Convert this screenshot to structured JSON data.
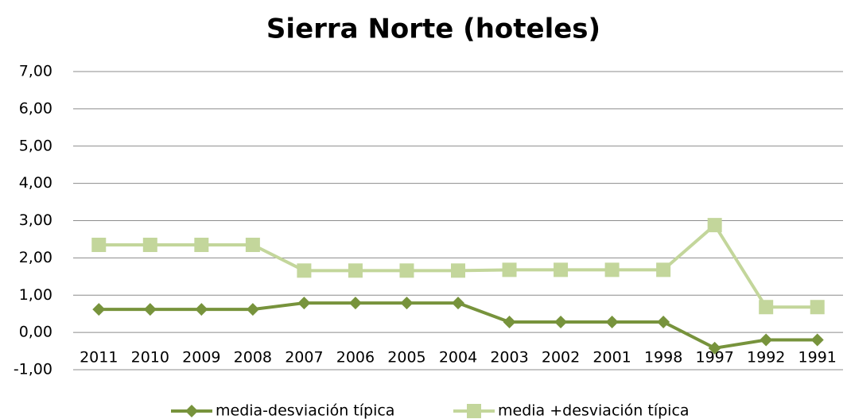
{
  "chart_data": {
    "type": "line",
    "title": "Sierra Norte (hoteles)",
    "categories": [
      "2011",
      "2010",
      "2009",
      "2008",
      "2007",
      "2006",
      "2005",
      "2004",
      "2003",
      "2002",
      "2001",
      "1998",
      "1997",
      "1992",
      "1991"
    ],
    "series": [
      {
        "name": "media-desviación típica",
        "color": "#77933c",
        "marker": "diamond",
        "values": [
          0.62,
          0.62,
          0.62,
          0.62,
          0.79,
          0.79,
          0.79,
          0.79,
          0.28,
          0.28,
          0.28,
          0.28,
          -0.42,
          -0.2,
          -0.2
        ]
      },
      {
        "name": "media +desviación típica",
        "color": "#c3d69b",
        "marker": "square",
        "values": [
          2.35,
          2.35,
          2.35,
          2.35,
          1.66,
          1.66,
          1.66,
          1.66,
          1.68,
          1.68,
          1.68,
          1.68,
          2.88,
          0.68,
          0.68
        ]
      }
    ],
    "ylim": [
      -1,
      7
    ],
    "yticks": [
      {
        "value": -1,
        "label": "-1,00"
      },
      {
        "value": 0,
        "label": "0,00"
      },
      {
        "value": 1,
        "label": "1,00"
      },
      {
        "value": 2,
        "label": "2,00"
      },
      {
        "value": 3,
        "label": "3,00"
      },
      {
        "value": 4,
        "label": "4,00"
      },
      {
        "value": 5,
        "label": "5,00"
      },
      {
        "value": 6,
        "label": "6,00"
      },
      {
        "value": 7,
        "label": "7,00"
      }
    ],
    "grid": true,
    "legend": "bottom"
  }
}
